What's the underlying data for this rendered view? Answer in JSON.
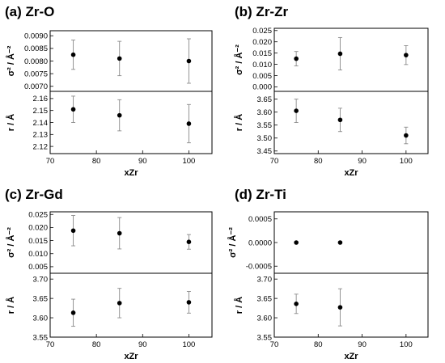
{
  "chart_data": [
    {
      "type": "scatter",
      "title": "(a) Zr-O",
      "xlabel": "xZr",
      "xlim": [
        70,
        105
      ],
      "xticks": [
        70,
        80,
        90,
        100
      ],
      "subplots": [
        {
          "ylabel": "σ² / Å⁻²",
          "ylim": [
            0.0068,
            0.0092
          ],
          "yticks": [
            "0.0070",
            "0.0075",
            "0.0080",
            "0.0085",
            "0.0090"
          ],
          "points": [
            {
              "x": 75,
              "y": 0.00825,
              "err": 0.00058
            },
            {
              "x": 85,
              "y": 0.0081,
              "err": 0.00068
            },
            {
              "x": 100,
              "y": 0.008,
              "err": 0.00088
            }
          ]
        },
        {
          "ylabel": "r / Å",
          "ylim": [
            2.114,
            2.166
          ],
          "yticks": [
            "2.12",
            "2.13",
            "2.14",
            "2.15",
            "2.16"
          ],
          "points": [
            {
              "x": 75,
              "y": 2.151,
              "err": 0.011
            },
            {
              "x": 85,
              "y": 2.146,
              "err": 0.013
            },
            {
              "x": 100,
              "y": 2.139,
              "err": 0.016
            }
          ]
        }
      ]
    },
    {
      "type": "scatter",
      "title": "(b) Zr-Zr",
      "xlabel": "xZr",
      "xlim": [
        70,
        105
      ],
      "xticks": [
        70,
        80,
        90,
        100
      ],
      "subplots": [
        {
          "ylabel": "σ² / Å⁻²",
          "ylim": [
            -0.002,
            0.026
          ],
          "yticks": [
            "0.000",
            "0.005",
            "0.010",
            "0.015",
            "0.020",
            "0.025"
          ],
          "points": [
            {
              "x": 75,
              "y": 0.0125,
              "err": 0.0032
            },
            {
              "x": 85,
              "y": 0.0147,
              "err": 0.0072
            },
            {
              "x": 100,
              "y": 0.0141,
              "err": 0.0042
            }
          ]
        },
        {
          "ylabel": "r / Å",
          "ylim": [
            3.44,
            3.68
          ],
          "yticks": [
            "3.45",
            "3.50",
            "3.55",
            "3.60",
            "3.65"
          ],
          "points": [
            {
              "x": 75,
              "y": 3.605,
              "err": 0.045
            },
            {
              "x": 85,
              "y": 3.57,
              "err": 0.045
            },
            {
              "x": 100,
              "y": 3.51,
              "err": 0.032
            }
          ]
        }
      ]
    },
    {
      "type": "scatter",
      "title": "(c) Zr-Gd",
      "xlabel": "xZr",
      "xlim": [
        70,
        105
      ],
      "xticks": [
        70,
        80,
        90,
        100
      ],
      "subplots": [
        {
          "ylabel": "σ² / Å⁻²",
          "ylim": [
            0.0025,
            0.026
          ],
          "yticks": [
            "0.005",
            "0.010",
            "0.015",
            "0.020",
            "0.025"
          ],
          "points": [
            {
              "x": 75,
              "y": 0.0188,
              "err": 0.0058
            },
            {
              "x": 85,
              "y": 0.0178,
              "err": 0.006
            },
            {
              "x": 100,
              "y": 0.0145,
              "err": 0.0028
            }
          ]
        },
        {
          "ylabel": "r / Å",
          "ylim": [
            3.55,
            3.715
          ],
          "yticks": [
            "3.55",
            "3.60",
            "3.65",
            "3.70"
          ],
          "points": [
            {
              "x": 75,
              "y": 3.613,
              "err": 0.035
            },
            {
              "x": 85,
              "y": 3.638,
              "err": 0.038
            },
            {
              "x": 100,
              "y": 3.64,
              "err": 0.028
            }
          ]
        }
      ]
    },
    {
      "type": "scatter",
      "title": "(d) Zr-Ti",
      "xlabel": "xZr",
      "xlim": [
        70,
        105
      ],
      "xticks": [
        70,
        80,
        90,
        100
      ],
      "subplots": [
        {
          "ylabel": "σ² / Å⁻²",
          "ylim": [
            -0.00065,
            0.00065
          ],
          "yticks": [
            "-0.0005",
            "0.0000",
            "0.0005"
          ],
          "points": [
            {
              "x": 75,
              "y": 0.0,
              "err": 0
            },
            {
              "x": 85,
              "y": 0.0,
              "err": 0
            }
          ]
        },
        {
          "ylabel": "r / Å",
          "ylim": [
            3.55,
            3.715
          ],
          "yticks": [
            "3.55",
            "3.60",
            "3.65",
            "3.70"
          ],
          "points": [
            {
              "x": 75,
              "y": 3.636,
              "err": 0.025
            },
            {
              "x": 85,
              "y": 3.627,
              "err": 0.048
            }
          ]
        }
      ]
    }
  ]
}
